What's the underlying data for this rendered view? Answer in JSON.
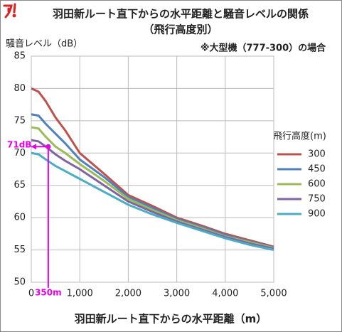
{
  "chart_data": {
    "type": "line",
    "title": "羽田新ルート直下からの水平距離と騒音レベルの関係",
    "subtitle": "（飛行高度別）",
    "note": "※大型機（777-300）の場合",
    "y_label": "騒音レベル（dB）",
    "x_label": "羽田新ルート直下からの水平距離（m）",
    "legend_title": "飛行高度(m)",
    "legend_position": "right",
    "grid": true,
    "x": [
      0,
      150,
      300,
      500,
      700,
      1000,
      1500,
      2000,
      2500,
      3000,
      3500,
      4000,
      4500,
      5000
    ],
    "series": [
      {
        "name": "300",
        "color": "#c0504d",
        "values": [
          80,
          79.5,
          78,
          75.5,
          73.5,
          70,
          66.8,
          63.5,
          61.8,
          60,
          58.8,
          57.5,
          56.5,
          55.5
        ]
      },
      {
        "name": "450",
        "color": "#4f81bd",
        "values": [
          76,
          75.8,
          74.5,
          73,
          71.5,
          69,
          66.3,
          63.2,
          61.5,
          59.8,
          58.6,
          57.3,
          56.3,
          55.4
        ]
      },
      {
        "name": "600",
        "color": "#9bbb59",
        "values": [
          74,
          73.8,
          72.5,
          71,
          70,
          68.3,
          65.7,
          62.9,
          61.2,
          59.6,
          58.4,
          57.1,
          56.2,
          55.3
        ]
      },
      {
        "name": "750",
        "color": "#8064a2",
        "values": [
          72,
          71.8,
          71,
          69.8,
          68.8,
          67.5,
          65,
          62.5,
          60.9,
          59.4,
          58.2,
          57,
          56,
          55.2
        ]
      },
      {
        "name": "900",
        "color": "#4bacc6",
        "values": [
          70,
          69.8,
          69,
          68,
          67.2,
          66,
          64,
          62,
          60.5,
          59.2,
          58,
          56.8,
          55.8,
          55
        ]
      }
    ],
    "xlim": [
      0,
      5000
    ],
    "xticks": [
      0,
      {
        "value": 1000,
        "label": "1,000"
      },
      {
        "value": 2000,
        "label": "2,000"
      },
      {
        "value": 3000,
        "label": "3,000"
      },
      {
        "value": 4000,
        "label": "4,000"
      },
      {
        "value": 5000,
        "label": "5,000"
      }
    ],
    "ylim": [
      50,
      85
    ],
    "yticks": [
      50,
      55,
      60,
      65,
      70,
      75,
      80,
      85
    ],
    "annotations": [
      {
        "axis": "y",
        "value": 71,
        "label": "71dB",
        "color": "#e600e6"
      },
      {
        "axis": "x",
        "value": 350,
        "label": "350m",
        "color": "#e600e6"
      }
    ]
  }
}
